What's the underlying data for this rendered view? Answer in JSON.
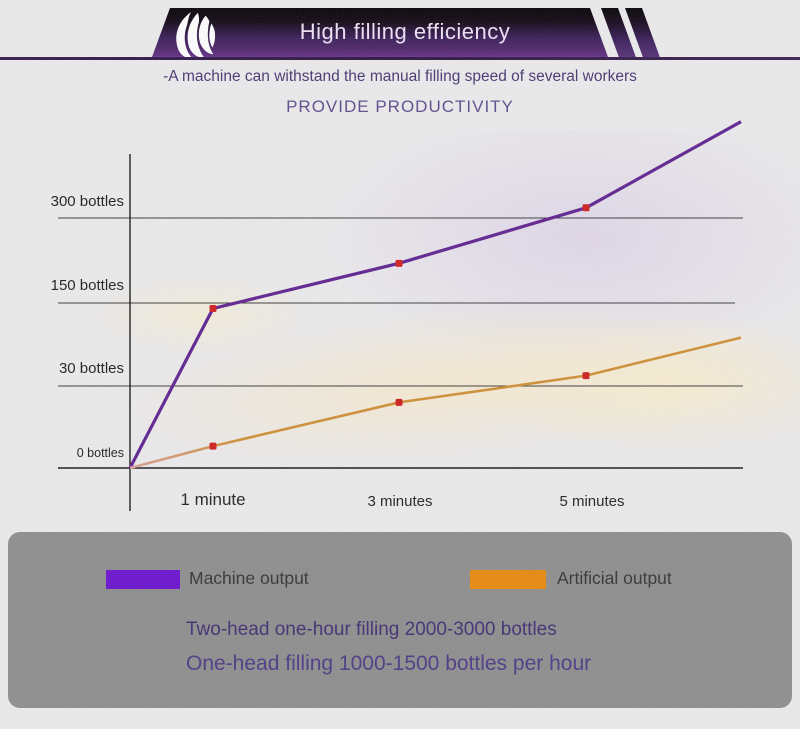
{
  "banner": {
    "title": "High filling efficiency",
    "gradient_top": "#020103",
    "gradient_bottom": "#5d2a80",
    "logo": "leaf-swirl"
  },
  "intro": {
    "subtitle": "-A machine can withstand the manual filling speed of several workers",
    "heading": "PROVIDE PRODUCTIVITY"
  },
  "chart_data": {
    "type": "line",
    "categories": [
      "1 minute",
      "3 minutes",
      "5 minutes"
    ],
    "y_tick_labels": [
      "300 bottles",
      "150 bottles",
      "30 bottles",
      "0 bottles"
    ],
    "y_tick_values": [
      300,
      150,
      30,
      0
    ],
    "grid": true,
    "legend_position": "bottom",
    "marker_color": "#cf1d1d",
    "series": [
      {
        "name": "Machine output",
        "color": "#5e2190",
        "origin_value": 0,
        "values": [
          142,
          220,
          318
        ],
        "trail_end_value": 470
      },
      {
        "name": "Artificial output",
        "color": "#cf8f35",
        "start_color": "#d9a098",
        "origin_value": 0,
        "values": [
          8,
          24,
          45
        ],
        "trail_end_value": 100
      }
    ]
  },
  "legend": {
    "items": [
      {
        "label": "Machine output",
        "color": "#6a10cf"
      },
      {
        "label": "Artificial output",
        "color": "#e8890b"
      }
    ]
  },
  "notes": {
    "line1": "Two-head one-hour filling 2000-3000 bottles",
    "line2": "One-head filling 1000-1500 bottles per hour"
  }
}
